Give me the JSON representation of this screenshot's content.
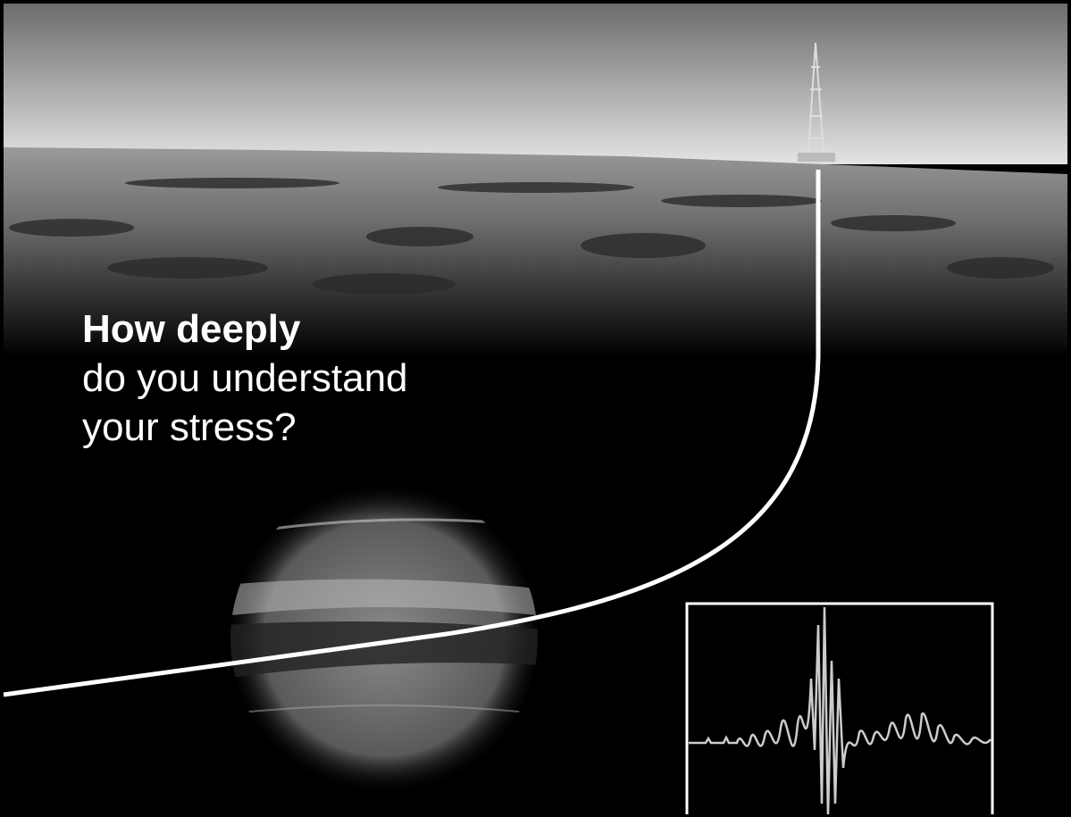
{
  "headline": {
    "bold": "How deeply",
    "lines": [
      "do you understand",
      "your stress?"
    ]
  }
}
